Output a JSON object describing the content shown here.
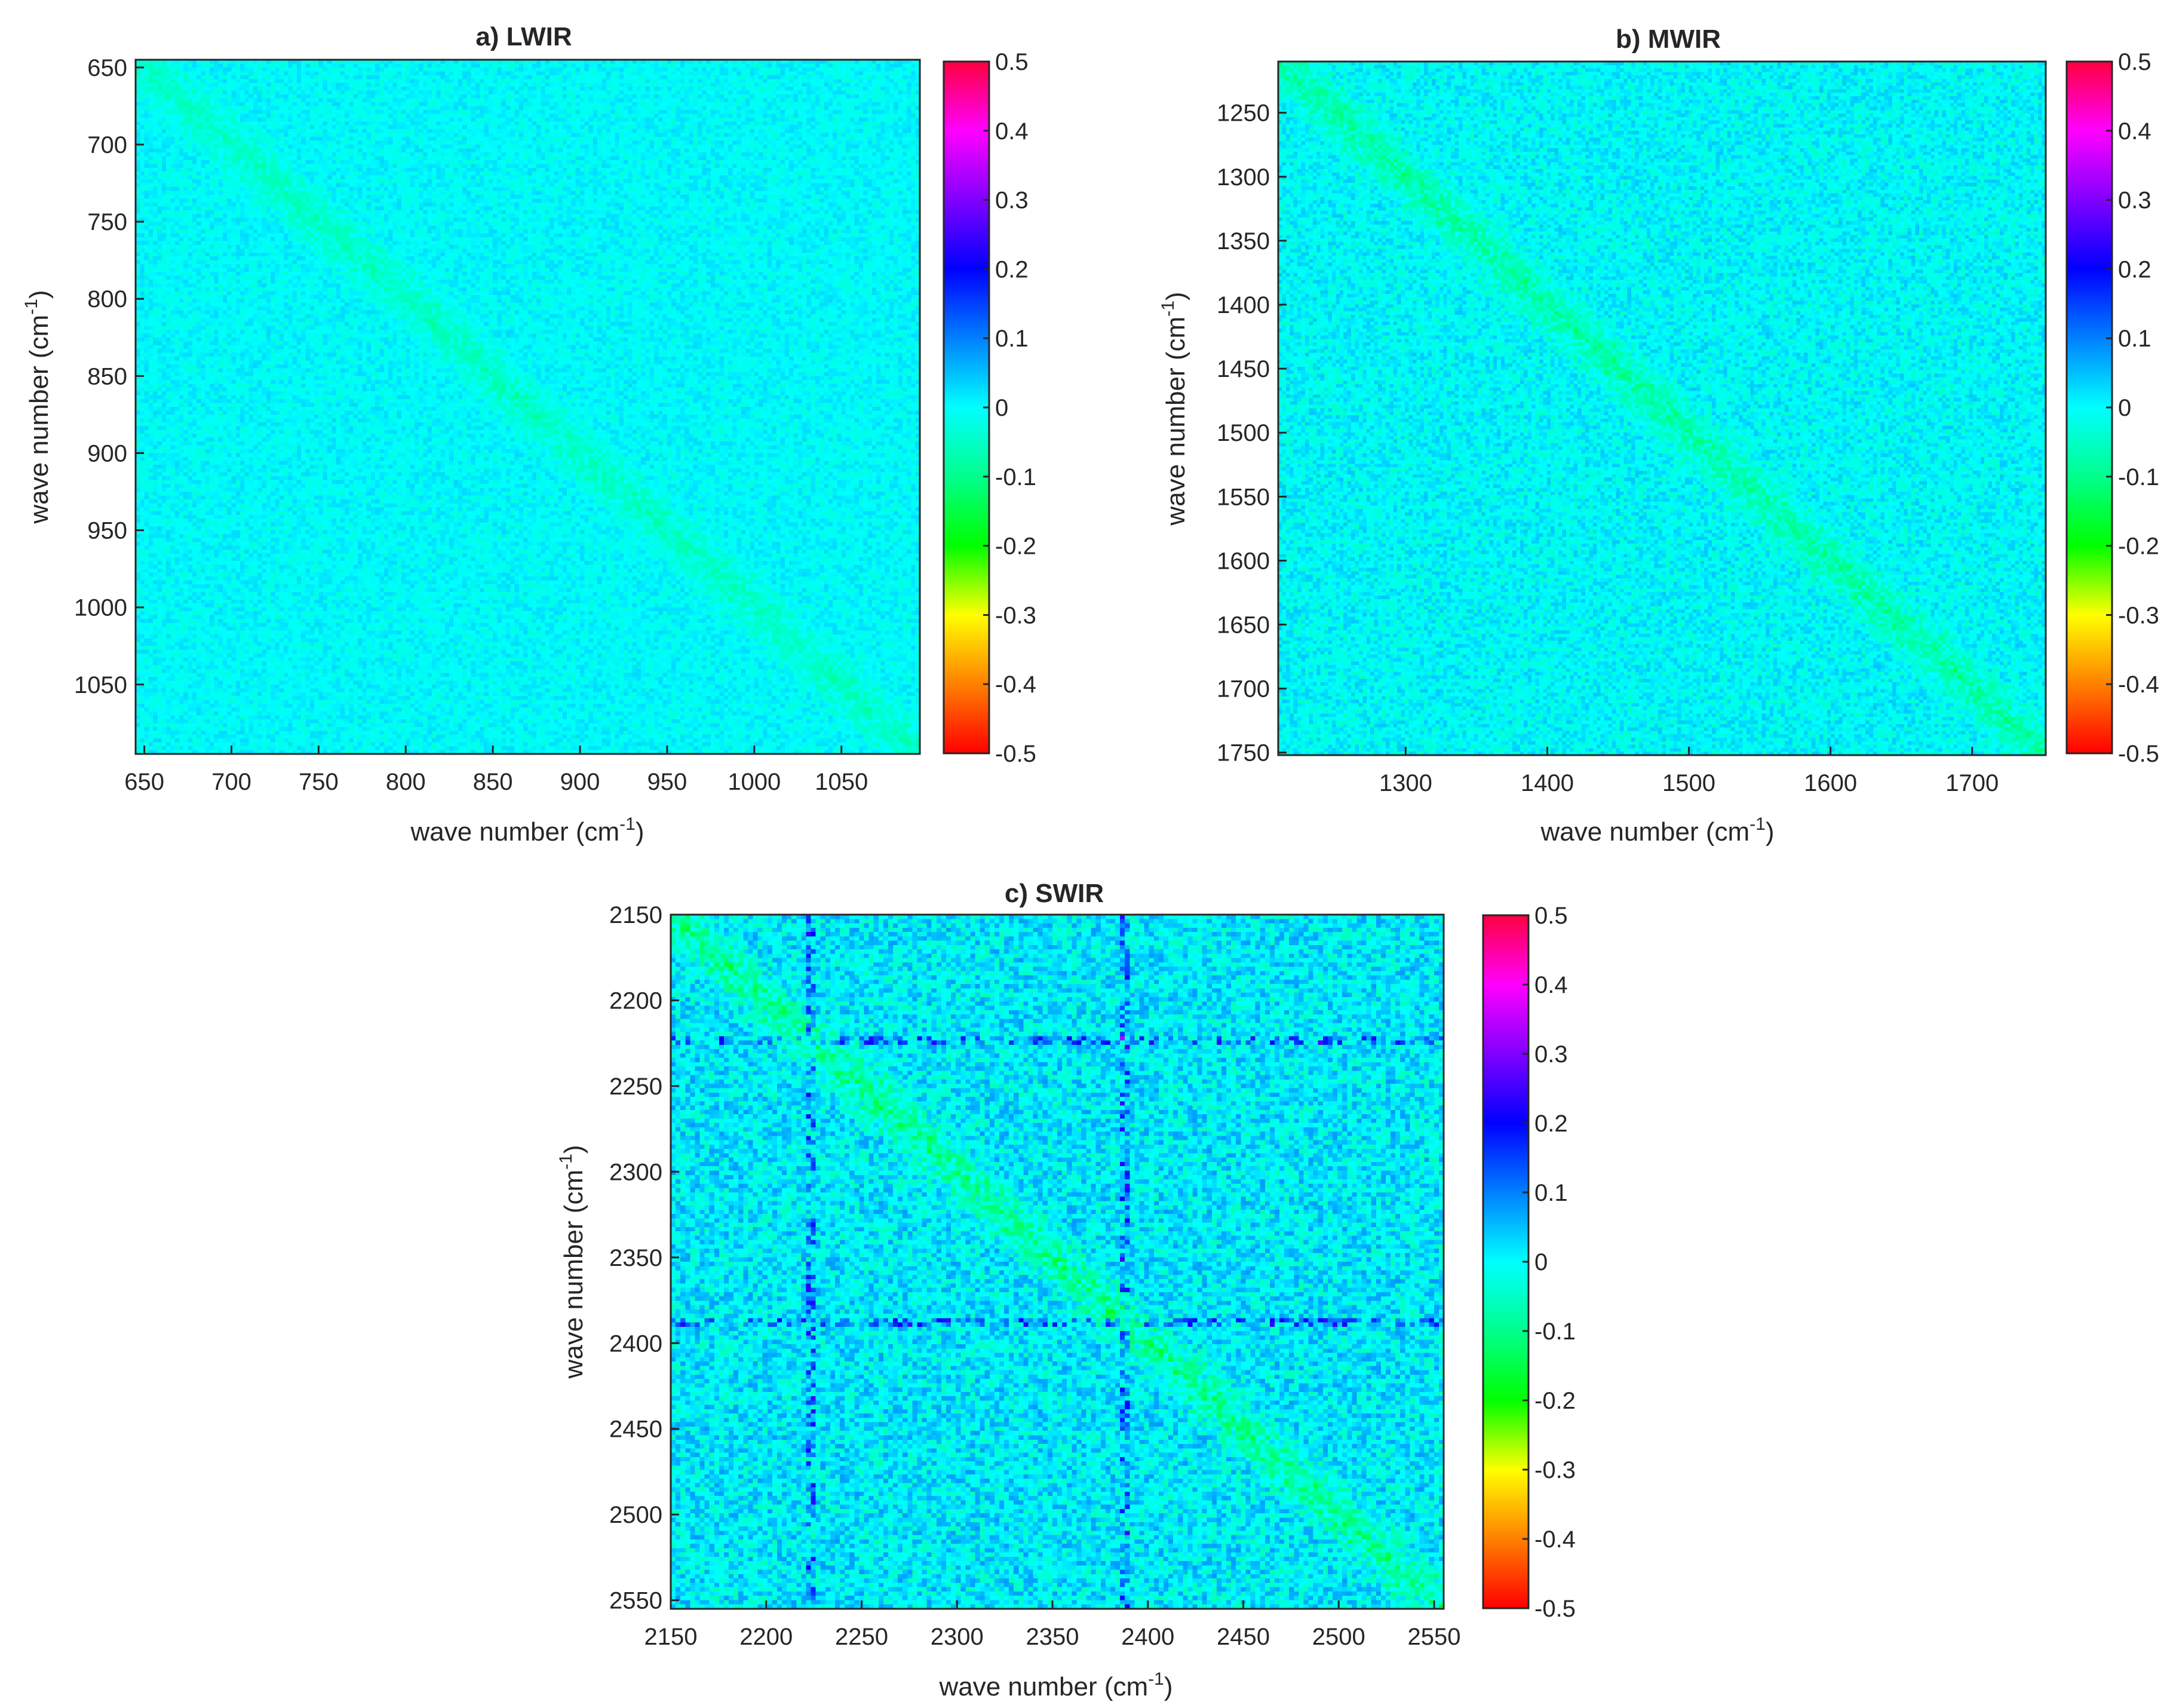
{
  "chart_data": [
    {
      "type": "heatmap",
      "title": "a) LWIR",
      "xlabel": "wave number (cm",
      "ylabel": "wave number (cm",
      "label_sup": "-1",
      "label_close": ")",
      "xlim": [
        645,
        1095
      ],
      "ylim": [
        645,
        1095
      ],
      "xticks": [
        650,
        700,
        750,
        800,
        850,
        900,
        950,
        1000,
        1050
      ],
      "yticks": [
        650,
        700,
        750,
        800,
        850,
        900,
        950,
        1000,
        1050
      ],
      "colorbar": {
        "clim": [
          -0.5,
          0.5
        ],
        "ticks": [
          0.5,
          0.4,
          0.3,
          0.2,
          0.1,
          0,
          -0.1,
          -0.2,
          -0.3,
          -0.4,
          -0.5
        ]
      },
      "background_value": 0.0,
      "noise_amplitude": 0.03,
      "diagonal_value": -0.07
    },
    {
      "type": "heatmap",
      "title": "b) MWIR",
      "xlabel": "wave number (cm",
      "ylabel": "wave number (cm",
      "label_sup": "-1",
      "label_close": ")",
      "xlim": [
        1210,
        1752
      ],
      "ylim": [
        1210,
        1752
      ],
      "xticks": [
        1300,
        1400,
        1500,
        1600,
        1700
      ],
      "yticks": [
        1250,
        1300,
        1350,
        1400,
        1450,
        1500,
        1550,
        1600,
        1650,
        1700,
        1750
      ],
      "colorbar": {
        "clim": [
          -0.5,
          0.5
        ],
        "ticks": [
          0.5,
          0.4,
          0.3,
          0.2,
          0.1,
          0,
          -0.1,
          -0.2,
          -0.3,
          -0.4,
          -0.5
        ]
      },
      "background_value": 0.0,
      "noise_amplitude": 0.045,
      "diagonal_value": -0.1
    },
    {
      "type": "heatmap",
      "title": "c) SWIR",
      "xlabel": "wave number (cm",
      "ylabel": "wave number (cm",
      "label_sup": "-1",
      "label_close": ")",
      "xlim": [
        2150,
        2555
      ],
      "ylim": [
        2150,
        2555
      ],
      "xticks": [
        2150,
        2200,
        2250,
        2300,
        2350,
        2400,
        2450,
        2500,
        2550
      ],
      "yticks": [
        2150,
        2200,
        2250,
        2300,
        2350,
        2400,
        2450,
        2500,
        2550
      ],
      "colorbar": {
        "clim": [
          -0.5,
          0.5
        ],
        "ticks": [
          0.5,
          0.4,
          0.3,
          0.2,
          0.1,
          0,
          -0.1,
          -0.2,
          -0.3,
          -0.4,
          -0.5
        ]
      },
      "background_value": 0.01,
      "noise_amplitude": 0.07,
      "diagonal_value": -0.13,
      "feature_lines": [
        2222,
        2387
      ],
      "feature_value": 0.14
    }
  ]
}
